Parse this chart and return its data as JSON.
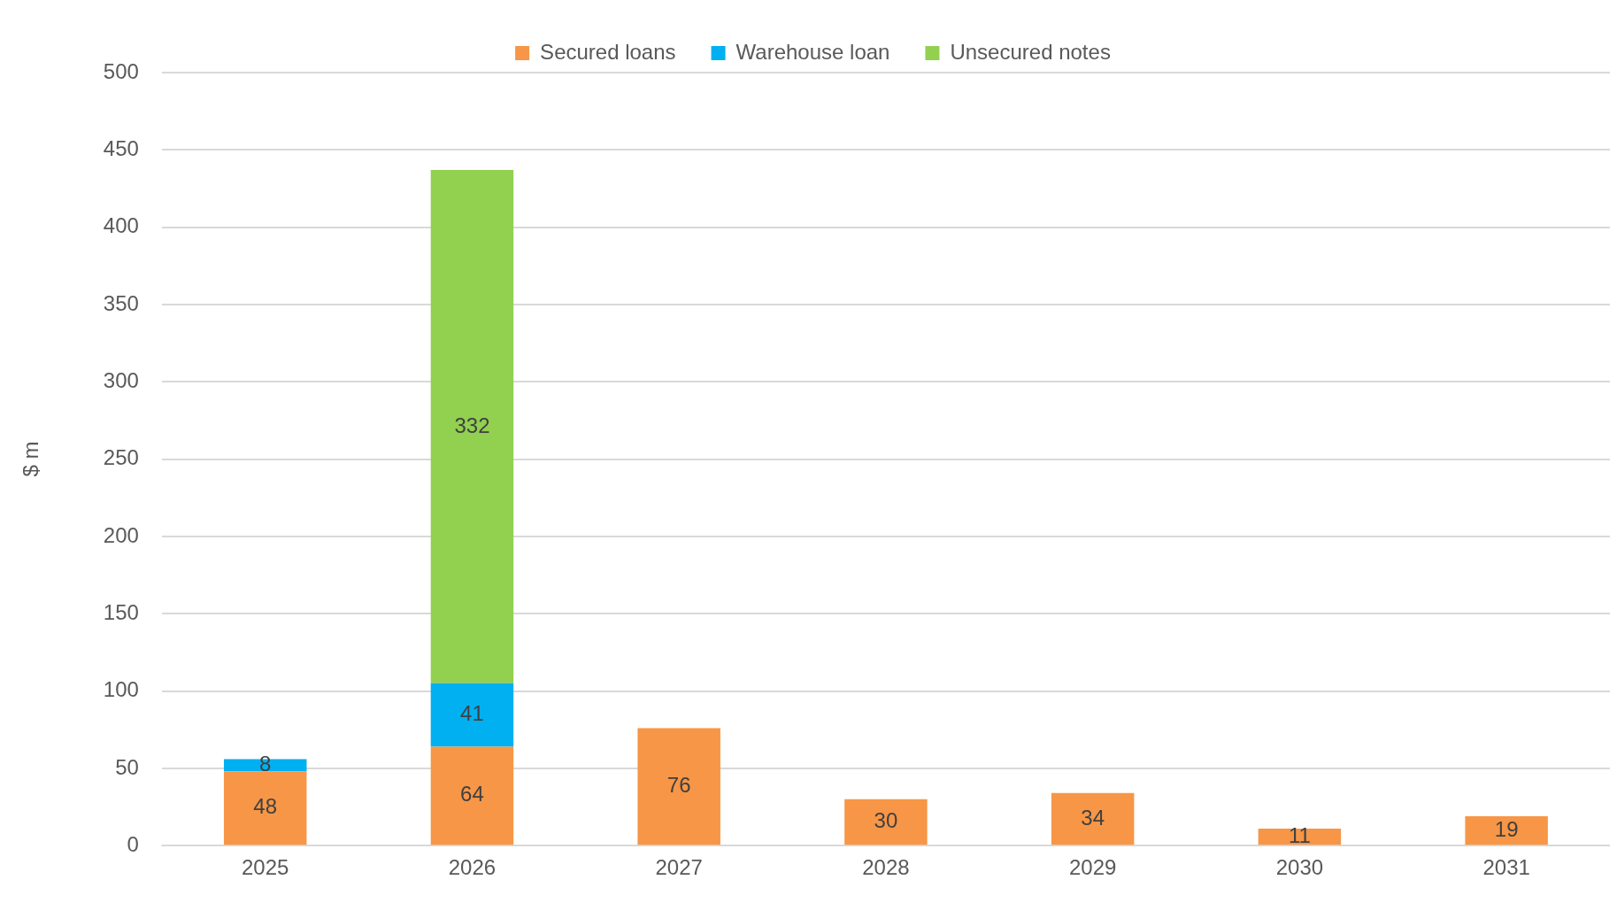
{
  "chart_data": {
    "type": "bar",
    "stacked": true,
    "ylabel": "$ m",
    "categories": [
      "2025",
      "2026",
      "2027",
      "2028",
      "2029",
      "2030",
      "2031"
    ],
    "series": [
      {
        "name": "Secured loans",
        "color": "#f79646",
        "values": [
          48,
          64,
          76,
          30,
          34,
          11,
          19
        ]
      },
      {
        "name": "Warehouse loan",
        "color": "#00b0f0",
        "values": [
          8,
          41,
          null,
          null,
          null,
          null,
          null
        ]
      },
      {
        "name": "Unsecured notes",
        "color": "#92d050",
        "values": [
          null,
          332,
          null,
          null,
          null,
          null,
          null
        ]
      }
    ],
    "ylim": [
      0,
      500
    ],
    "yticks": [
      0,
      50,
      100,
      150,
      200,
      250,
      300,
      350,
      400,
      450,
      500
    ],
    "grid": "y",
    "legend": "top",
    "data_labels": true
  }
}
